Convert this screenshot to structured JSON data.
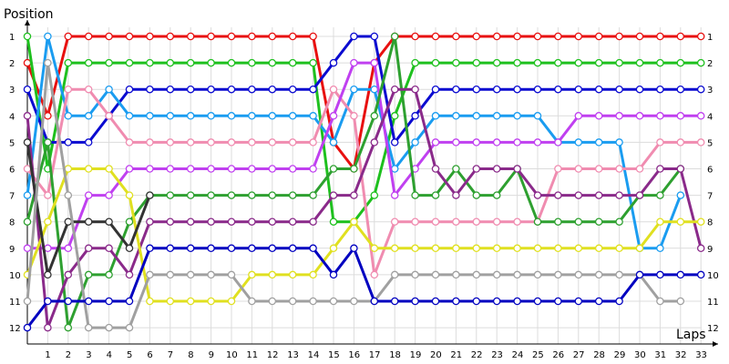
{
  "chart_data": {
    "type": "line",
    "ylabel": "Position",
    "xlabel": "Laps",
    "y_inverted": true,
    "ylim": [
      1,
      12
    ],
    "xlim": [
      0,
      33
    ],
    "x_ticks": [
      1,
      2,
      3,
      4,
      5,
      6,
      7,
      8,
      9,
      10,
      11,
      12,
      13,
      14,
      15,
      16,
      17,
      18,
      19,
      20,
      21,
      22,
      23,
      24,
      25,
      26,
      27,
      28,
      29,
      30,
      31,
      32,
      33
    ],
    "y_ticks_left": [
      1,
      2,
      3,
      4,
      5,
      6,
      7,
      8,
      9,
      10,
      11,
      12
    ],
    "y_ticks_right": [
      1,
      2,
      3,
      4,
      5,
      6,
      7,
      8,
      9,
      10,
      11,
      12
    ],
    "grid": true,
    "series": [
      {
        "color": "#e81010",
        "x": [
          0,
          1,
          2,
          3,
          4,
          5,
          6,
          7,
          8,
          9,
          10,
          11,
          12,
          13,
          14,
          15,
          16,
          17,
          18,
          19,
          20,
          21,
          22,
          23,
          24,
          25,
          26,
          27,
          28,
          29,
          30,
          31,
          32,
          33
        ],
        "values": [
          2,
          4,
          1,
          1,
          1,
          1,
          1,
          1,
          1,
          1,
          1,
          1,
          1,
          1,
          1,
          5,
          6,
          2,
          1,
          1,
          1,
          1,
          1,
          1,
          1,
          1,
          1,
          1,
          1,
          1,
          1,
          1,
          1,
          1
        ]
      },
      {
        "color": "#1ec01e",
        "x": [
          0,
          1,
          2,
          3,
          4,
          5,
          6,
          7,
          8,
          9,
          10,
          11,
          12,
          13,
          14,
          15,
          16,
          17,
          18,
          19,
          20,
          21,
          22,
          23,
          24,
          25,
          26,
          27,
          28,
          29,
          30,
          31,
          32,
          33
        ],
        "values": [
          1,
          6,
          2,
          2,
          2,
          2,
          2,
          2,
          2,
          2,
          2,
          2,
          2,
          2,
          2,
          8,
          8,
          7,
          4,
          2,
          2,
          2,
          2,
          2,
          2,
          2,
          2,
          2,
          2,
          2,
          2,
          2,
          2,
          2
        ]
      },
      {
        "color": "#0b0bd0",
        "x": [
          0,
          1,
          2,
          3,
          4,
          5,
          6,
          7,
          8,
          9,
          10,
          11,
          12,
          13,
          14,
          15,
          16,
          17,
          18,
          19,
          20,
          21,
          22,
          23,
          24,
          25,
          26,
          27,
          28,
          29,
          30,
          31,
          32,
          33
        ],
        "values": [
          3,
          5,
          5,
          5,
          4,
          3,
          3,
          3,
          3,
          3,
          3,
          3,
          3,
          3,
          3,
          2,
          1,
          1,
          5,
          4,
          3,
          3,
          3,
          3,
          3,
          3,
          3,
          3,
          3,
          3,
          3,
          3,
          3,
          3
        ]
      },
      {
        "color": "#1a9cf0",
        "x": [
          0,
          1,
          2,
          3,
          4,
          5,
          6,
          7,
          8,
          9,
          10,
          11,
          12,
          13,
          14,
          15,
          16,
          17,
          18,
          19,
          20,
          21,
          22,
          23,
          24,
          25,
          26,
          27,
          28,
          29,
          30,
          31,
          32
        ],
        "values": [
          7,
          1,
          4,
          4,
          3,
          4,
          4,
          4,
          4,
          4,
          4,
          4,
          4,
          4,
          4,
          5,
          3,
          3,
          6,
          5,
          4,
          4,
          4,
          4,
          4,
          4,
          5,
          5,
          5,
          5,
          9,
          9,
          7
        ]
      },
      {
        "color": "#f08cb0",
        "x": [
          0,
          1,
          2,
          3,
          4,
          5,
          6,
          7,
          8,
          9,
          10,
          11,
          12,
          13,
          14,
          15,
          16,
          17,
          18,
          19,
          20,
          21,
          22,
          23,
          24,
          25,
          26,
          27,
          28,
          29,
          30,
          31,
          32,
          33
        ],
        "values": [
          6,
          7,
          3,
          3,
          4,
          5,
          5,
          5,
          5,
          5,
          5,
          5,
          5,
          5,
          5,
          3,
          4,
          10,
          8,
          8,
          8,
          8,
          8,
          8,
          8,
          8,
          6,
          6,
          6,
          6,
          6,
          5,
          5,
          5
        ]
      },
      {
        "color": "#c040f0",
        "x": [
          0,
          1,
          2,
          3,
          4,
          5,
          6,
          7,
          8,
          9,
          10,
          11,
          12,
          13,
          14,
          15,
          16,
          17,
          18,
          19,
          20,
          21,
          22,
          23,
          24,
          25,
          26,
          27,
          28,
          29,
          30,
          31,
          32,
          33
        ],
        "values": [
          9,
          9,
          9,
          7,
          7,
          6,
          6,
          6,
          6,
          6,
          6,
          6,
          6,
          6,
          6,
          4,
          2,
          2,
          7,
          6,
          5,
          5,
          5,
          5,
          5,
          5,
          5,
          4,
          4,
          4,
          4,
          4,
          4,
          4
        ]
      },
      {
        "color": "#2ea030",
        "x": [
          0,
          1,
          2,
          3,
          4,
          5,
          6,
          7,
          8,
          9,
          10,
          11,
          12,
          13,
          14,
          15,
          16,
          17,
          18,
          19,
          20,
          21,
          22,
          23,
          24,
          25,
          26,
          27,
          28,
          29,
          30,
          31,
          32
        ],
        "values": [
          8,
          5,
          12,
          10,
          10,
          8,
          7,
          7,
          7,
          7,
          7,
          7,
          7,
          7,
          7,
          6,
          6,
          4,
          1,
          7,
          7,
          6,
          7,
          7,
          6,
          8,
          8,
          8,
          8,
          8,
          7,
          7,
          6
        ]
      },
      {
        "color": "#8a2a8a",
        "x": [
          0,
          1,
          2,
          3,
          4,
          5,
          6,
          7,
          8,
          9,
          10,
          11,
          12,
          13,
          14,
          15,
          16,
          17,
          18,
          19,
          20,
          21,
          22,
          23,
          24,
          25,
          26,
          27,
          28,
          29,
          30,
          31,
          32,
          33
        ],
        "values": [
          4,
          12,
          10,
          9,
          9,
          10,
          8,
          8,
          8,
          8,
          8,
          8,
          8,
          8,
          8,
          7,
          7,
          5,
          3,
          3,
          6,
          7,
          6,
          6,
          6,
          7,
          7,
          7,
          7,
          7,
          7,
          6,
          6,
          9
        ]
      },
      {
        "color": "#e0e020",
        "x": [
          0,
          1,
          2,
          3,
          4,
          5,
          6,
          7,
          8,
          9,
          10,
          11,
          12,
          13,
          14,
          15,
          16,
          17,
          18,
          19,
          20,
          21,
          22,
          23,
          24,
          25,
          26,
          27,
          28,
          29,
          30,
          31,
          32,
          33
        ],
        "values": [
          10,
          8,
          6,
          6,
          6,
          7,
          11,
          11,
          11,
          11,
          11,
          10,
          10,
          10,
          10,
          9,
          8,
          9,
          9,
          9,
          9,
          9,
          9,
          9,
          9,
          9,
          9,
          9,
          9,
          9,
          9,
          8,
          8,
          8
        ]
      },
      {
        "color": "#333333",
        "x": [
          0,
          1,
          2,
          3,
          4,
          5,
          6
        ],
        "values": [
          5,
          10,
          8,
          8,
          8,
          9,
          7
        ]
      },
      {
        "color": "#a0a0a0",
        "x": [
          0,
          1,
          2,
          3,
          4,
          5,
          6,
          7,
          8,
          9,
          10,
          11,
          12,
          13,
          14,
          15,
          16,
          17,
          18,
          19,
          20,
          21,
          22,
          23,
          24,
          25,
          26,
          27,
          28,
          29,
          30,
          31,
          32
        ],
        "values": [
          11,
          2,
          7,
          12,
          12,
          12,
          10,
          10,
          10,
          10,
          10,
          11,
          11,
          11,
          11,
          11,
          11,
          11,
          10,
          10,
          10,
          10,
          10,
          10,
          10,
          10,
          10,
          10,
          10,
          10,
          10,
          11,
          11
        ]
      },
      {
        "color": "#0000c0",
        "x": [
          0,
          1,
          2,
          3,
          4,
          5,
          6,
          7,
          8,
          9,
          10,
          11,
          12,
          13,
          14,
          15,
          16,
          17,
          18,
          19,
          20,
          21,
          22,
          23,
          24,
          25,
          26,
          27,
          28,
          29,
          30,
          31,
          32,
          33
        ],
        "values": [
          12,
          11,
          11,
          11,
          11,
          11,
          9,
          9,
          9,
          9,
          9,
          9,
          9,
          9,
          9,
          10,
          9,
          11,
          11,
          11,
          11,
          11,
          11,
          11,
          11,
          11,
          11,
          11,
          11,
          11,
          10,
          10,
          10,
          10
        ]
      }
    ]
  }
}
